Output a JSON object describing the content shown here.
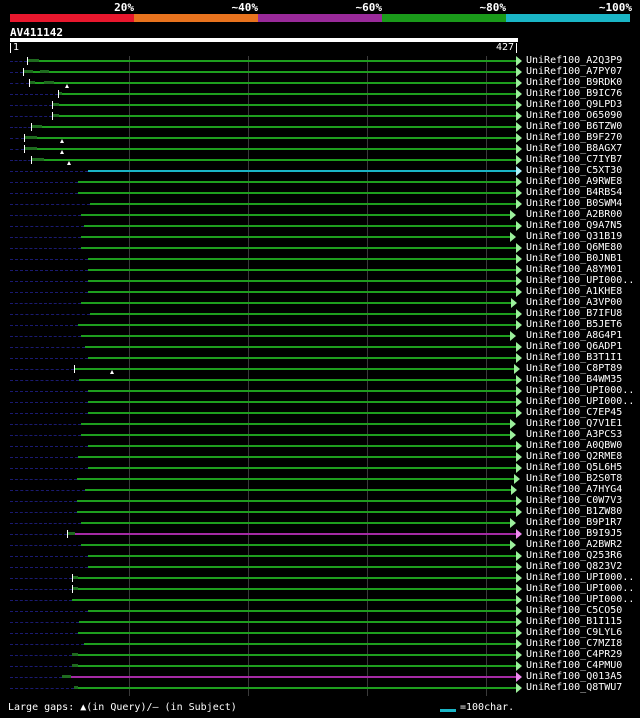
{
  "legend": {
    "colors": [
      "#e8172d",
      "#e8731e",
      "#9a2a9a",
      "#1a9a1a",
      "#1ab5c6"
    ],
    "labels": [
      "20%",
      "~40%",
      "~60%",
      "~80%",
      "~100%"
    ]
  },
  "query": {
    "id": "AV411142",
    "start": "1",
    "end": "427",
    "length": 427
  },
  "bar_colors": {
    "green": "#1e9e1e",
    "cyan": "#1ab5c6",
    "purple": "#a52aa5",
    "arrow_green": "#9cf09c",
    "arrow_cyan": "#aef3fa",
    "arrow_purple": "#f08cf0"
  },
  "hits": [
    {
      "name": "UniRef100_A2Q3P9",
      "start": 15,
      "end": 427,
      "color": "green",
      "cap": true,
      "gaps": [
        [
          15,
          25
        ]
      ]
    },
    {
      "name": "UniRef100_A7PY07",
      "start": 12,
      "end": 427,
      "color": "green",
      "cap": true,
      "gaps": [
        [
          12,
          20
        ],
        [
          26,
          34
        ]
      ]
    },
    {
      "name": "UniRef100_B9RDK0",
      "start": 17,
      "end": 427,
      "color": "green",
      "cap": true,
      "gaps": [
        [
          17,
          22
        ],
        [
          30,
          38
        ]
      ],
      "insert": true
    },
    {
      "name": "UniRef100_B9IC76",
      "start": 41,
      "end": 427,
      "color": "green",
      "cap": true,
      "gaps": [
        [
          41,
          45
        ]
      ]
    },
    {
      "name": "UniRef100_Q9LPD3",
      "start": 36,
      "end": 427,
      "color": "green",
      "cap": true,
      "gaps": [
        [
          36,
          42
        ]
      ]
    },
    {
      "name": "UniRef100_O65090",
      "start": 36,
      "end": 427,
      "color": "green",
      "cap": true,
      "gaps": [
        [
          36,
          42
        ]
      ]
    },
    {
      "name": "UniRef100_B6TZW0",
      "start": 19,
      "end": 427,
      "color": "green",
      "cap": true,
      "gaps": [
        [
          19,
          28
        ]
      ]
    },
    {
      "name": "UniRef100_B9F270",
      "start": 13,
      "end": 427,
      "color": "green",
      "cap": true,
      "gaps": [
        [
          13,
          24
        ]
      ],
      "insert": true
    },
    {
      "name": "UniRef100_B8AGX7",
      "start": 13,
      "end": 427,
      "color": "green",
      "cap": true,
      "gaps": [
        [
          13,
          24
        ]
      ],
      "insert": true
    },
    {
      "name": "UniRef100_C7IYB7",
      "start": 19,
      "end": 427,
      "color": "green",
      "cap": true,
      "gaps": [
        [
          19,
          30
        ]
      ],
      "insert": true
    },
    {
      "name": "UniRef100_C5XT30",
      "start": 67,
      "end": 427,
      "color": "cyan",
      "cap": false,
      "gaps": []
    },
    {
      "name": "UniRef100_A9RWE8",
      "start": 58,
      "end": 427,
      "color": "green",
      "cap": false,
      "gaps": []
    },
    {
      "name": "UniRef100_B4RBS4",
      "start": 58,
      "end": 427,
      "color": "green",
      "cap": false,
      "gaps": []
    },
    {
      "name": "UniRef100_B0SWM4",
      "start": 68,
      "end": 427,
      "color": "green",
      "cap": false,
      "gaps": []
    },
    {
      "name": "UniRef100_A2BR00",
      "start": 61,
      "end": 422,
      "color": "green",
      "cap": false,
      "gaps": []
    },
    {
      "name": "UniRef100_Q9A7N5",
      "start": 63,
      "end": 427,
      "color": "green",
      "cap": false,
      "gaps": []
    },
    {
      "name": "UniRef100_Q31B19",
      "start": 61,
      "end": 422,
      "color": "green",
      "cap": false,
      "gaps": []
    },
    {
      "name": "UniRef100_Q6ME80",
      "start": 61,
      "end": 427,
      "color": "green",
      "cap": false,
      "gaps": []
    },
    {
      "name": "UniRef100_B0JNB1",
      "start": 67,
      "end": 427,
      "color": "green",
      "cap": false,
      "gaps": []
    },
    {
      "name": "UniRef100_A8YM01",
      "start": 67,
      "end": 427,
      "color": "green",
      "cap": false,
      "gaps": []
    },
    {
      "name": "UniRef100_UPI000..",
      "start": 67,
      "end": 427,
      "color": "green",
      "cap": false,
      "gaps": []
    },
    {
      "name": "UniRef100_A1KHE8",
      "start": 67,
      "end": 427,
      "color": "green",
      "cap": false,
      "gaps": []
    },
    {
      "name": "UniRef100_A3VP00",
      "start": 61,
      "end": 423,
      "color": "green",
      "cap": false,
      "gaps": []
    },
    {
      "name": "UniRef100_B7IFU8",
      "start": 68,
      "end": 427,
      "color": "green",
      "cap": false,
      "gaps": []
    },
    {
      "name": "UniRef100_B5JET6",
      "start": 58,
      "end": 427,
      "color": "green",
      "cap": false,
      "gaps": []
    },
    {
      "name": "UniRef100_A8G4P1",
      "start": 61,
      "end": 422,
      "color": "green",
      "cap": false,
      "gaps": []
    },
    {
      "name": "UniRef100_Q6ADP1",
      "start": 64,
      "end": 427,
      "color": "green",
      "cap": false,
      "gaps": []
    },
    {
      "name": "UniRef100_B3T1I1",
      "start": 67,
      "end": 427,
      "color": "green",
      "cap": false,
      "gaps": []
    },
    {
      "name": "UniRef100_C8PT89",
      "start": 55,
      "end": 425,
      "color": "green",
      "cap": true,
      "gaps": [],
      "insert": true
    },
    {
      "name": "UniRef100_B4WM35",
      "start": 59,
      "end": 427,
      "color": "green",
      "cap": false,
      "gaps": []
    },
    {
      "name": "UniRef100_UPI000..",
      "start": 67,
      "end": 427,
      "color": "green",
      "cap": false,
      "gaps": []
    },
    {
      "name": "UniRef100_UPI000..",
      "start": 67,
      "end": 427,
      "color": "green",
      "cap": false,
      "gaps": []
    },
    {
      "name": "UniRef100_C7EP45",
      "start": 67,
      "end": 427,
      "color": "green",
      "cap": false,
      "gaps": []
    },
    {
      "name": "UniRef100_Q7V1E1",
      "start": 61,
      "end": 422,
      "color": "green",
      "cap": false,
      "gaps": []
    },
    {
      "name": "UniRef100_A3PCS3",
      "start": 61,
      "end": 422,
      "color": "green",
      "cap": false,
      "gaps": []
    },
    {
      "name": "UniRef100_A0QBW0",
      "start": 67,
      "end": 427,
      "color": "green",
      "cap": false,
      "gaps": []
    },
    {
      "name": "UniRef100_Q2RME8",
      "start": 58,
      "end": 427,
      "color": "green",
      "cap": false,
      "gaps": []
    },
    {
      "name": "UniRef100_Q5L6H5",
      "start": 67,
      "end": 427,
      "color": "green",
      "cap": false,
      "gaps": []
    },
    {
      "name": "UniRef100_B2S0T8",
      "start": 57,
      "end": 425,
      "color": "green",
      "cap": false,
      "gaps": []
    },
    {
      "name": "UniRef100_A7HYG4",
      "start": 64,
      "end": 423,
      "color": "green",
      "cap": false,
      "gaps": []
    },
    {
      "name": "UniRef100_C0W7V3",
      "start": 57,
      "end": 427,
      "color": "green",
      "cap": false,
      "gaps": []
    },
    {
      "name": "UniRef100_B1ZW80",
      "start": 57,
      "end": 427,
      "color": "green",
      "cap": false,
      "gaps": []
    },
    {
      "name": "UniRef100_B9P1R7",
      "start": 61,
      "end": 422,
      "color": "green",
      "cap": false,
      "gaps": []
    },
    {
      "name": "UniRef100_B9I9J5",
      "start": 49,
      "end": 427,
      "color": "purple",
      "cap": true,
      "gaps": [
        [
          49,
          56
        ]
      ]
    },
    {
      "name": "UniRef100_A2BWR2",
      "start": 61,
      "end": 422,
      "color": "green",
      "cap": false,
      "gaps": []
    },
    {
      "name": "UniRef100_Q253R6",
      "start": 67,
      "end": 427,
      "color": "green",
      "cap": false,
      "gaps": []
    },
    {
      "name": "UniRef100_Q823V2",
      "start": 67,
      "end": 427,
      "color": "green",
      "cap": false,
      "gaps": []
    },
    {
      "name": "UniRef100_UPI000..",
      "start": 53,
      "end": 427,
      "color": "green",
      "cap": true,
      "gaps": [
        [
          53,
          58
        ]
      ]
    },
    {
      "name": "UniRef100_UPI000..",
      "start": 53,
      "end": 427,
      "color": "green",
      "cap": true,
      "gaps": [
        [
          53,
          58
        ]
      ]
    },
    {
      "name": "UniRef100_UPI000..",
      "start": 53,
      "end": 427,
      "color": "green",
      "cap": false,
      "gaps": []
    },
    {
      "name": "UniRef100_C5CO50",
      "start": 67,
      "end": 427,
      "color": "green",
      "cap": false,
      "gaps": []
    },
    {
      "name": "UniRef100_B1I115",
      "start": 59,
      "end": 427,
      "color": "green",
      "cap": false,
      "gaps": []
    },
    {
      "name": "UniRef100_C9LYL6",
      "start": 58,
      "end": 427,
      "color": "green",
      "cap": false,
      "gaps": []
    },
    {
      "name": "UniRef100_C7MZI8",
      "start": 63,
      "end": 427,
      "color": "green",
      "cap": false,
      "gaps": []
    },
    {
      "name": "UniRef100_C4PR29",
      "start": 53,
      "end": 427,
      "color": "green",
      "cap": false,
      "gaps": [
        [
          53,
          58
        ]
      ]
    },
    {
      "name": "UniRef100_C4PMU0",
      "start": 53,
      "end": 427,
      "color": "green",
      "cap": false,
      "gaps": [
        [
          53,
          58
        ]
      ]
    },
    {
      "name": "UniRef100_Q013A5",
      "start": 45,
      "end": 427,
      "color": "purple",
      "cap": false,
      "gaps": [
        [
          45,
          52
        ]
      ]
    },
    {
      "name": "UniRef100_Q8TWU7",
      "start": 55,
      "end": 427,
      "color": "green",
      "cap": false,
      "gaps": [
        [
          55,
          58
        ]
      ]
    }
  ],
  "footer": {
    "gaps_label": "Large gaps: ▲(in Query)/– (in Subject)",
    "scale_label": "=100char."
  }
}
